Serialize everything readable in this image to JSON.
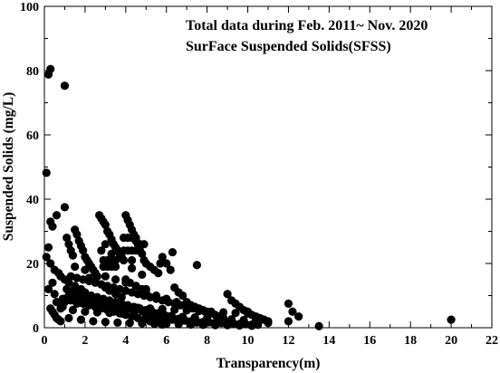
{
  "chart_data": {
    "type": "scatter",
    "annotations": [
      "Total data during Feb. 2011~ Nov. 2020",
      "SurFace Suspended Solids(SFSS)"
    ],
    "xlabel": "Transparency(m)",
    "ylabel": "Suspended Solids (mg/L)",
    "xlim": [
      0,
      22
    ],
    "ylim": [
      0,
      100
    ],
    "xticks": [
      "0",
      "2",
      "4",
      "6",
      "8",
      "10",
      "12",
      "14",
      "16",
      "18",
      "20",
      "22"
    ],
    "yticks": [
      "0",
      "20",
      "40",
      "60",
      "80",
      "100"
    ],
    "grid": false,
    "marker_color": "#000000",
    "series": [
      {
        "x": [
          0.2,
          0.3,
          1.0,
          0.1,
          1.0,
          0.6,
          0.3,
          0.4,
          0.2,
          0.1,
          0.3,
          0.5,
          0.7,
          0.8,
          0.4,
          0.2,
          0.5,
          0.9,
          0.6,
          0.3,
          0.4,
          0.5,
          0.6,
          0.7,
          0.8,
          0.9,
          1.1,
          1.2,
          1.3,
          1.4,
          1.5,
          1.6,
          1.7,
          1.8,
          1.9,
          2.0,
          2.1,
          2.2,
          2.3,
          2.4,
          2.5,
          2.6,
          2.7,
          2.8,
          2.9,
          3.0,
          3.1,
          3.2,
          3.3,
          3.4,
          3.5,
          3.6,
          3.7,
          3.8,
          3.9,
          4.0,
          4.1,
          4.2,
          4.3,
          4.4,
          4.5,
          4.6,
          4.7,
          4.8,
          4.9,
          5.0,
          5.2,
          5.4,
          5.6,
          5.8,
          6.0,
          6.2,
          6.4,
          6.6,
          6.8,
          7.0,
          7.2,
          7.4,
          7.6,
          7.8,
          8.0,
          8.2,
          8.4,
          8.6,
          8.8,
          9.0,
          9.2,
          9.4,
          9.6,
          9.8,
          10.0,
          10.2,
          10.4,
          10.6,
          10.8,
          11.0,
          12.0,
          12.2,
          12.5,
          13.5,
          20.0,
          1.0,
          1.2,
          1.5,
          1.8,
          2.0,
          2.2,
          2.5,
          2.8,
          3.0,
          3.2,
          3.5,
          3.8,
          4.0,
          4.2,
          4.5,
          4.8,
          5.0,
          5.5,
          6.0,
          6.5,
          1.0,
          1.3,
          1.6,
          1.9,
          2.2,
          2.5,
          2.8,
          3.1,
          3.4,
          3.7,
          4.0,
          4.3,
          4.6,
          4.9,
          5.2,
          5.5,
          5.8,
          1.1,
          1.4,
          1.7,
          2.0,
          2.3,
          2.6,
          2.9,
          3.2,
          3.5,
          3.8,
          4.1,
          4.4,
          4.7,
          5.0,
          5.3,
          5.6,
          5.9,
          6.2,
          1.5,
          2.0,
          2.5,
          3.0,
          3.5,
          4.0,
          4.5,
          5.0,
          2.8,
          3.3,
          3.8,
          4.3,
          1.2,
          1.8,
          2.4,
          3.0,
          3.6,
          4.2,
          4.8,
          5.4,
          6.0,
          6.6,
          7.2,
          7.8,
          8.4,
          9.0,
          9.6,
          10.2,
          0.8,
          1.4,
          2.0,
          2.6,
          3.2,
          3.8,
          4.4,
          5.0,
          5.6,
          6.2,
          6.8,
          7.4,
          8.0,
          8.6,
          9.2,
          9.8,
          10.4,
          11.0,
          12.0,
          1.0,
          1.6,
          2.2,
          2.8,
          3.4,
          4.0,
          4.6,
          5.2,
          5.8,
          6.4,
          7.0,
          7.6,
          8.2,
          8.8,
          9.4,
          10.0,
          1.2,
          1.5,
          1.8,
          2.1,
          2.4,
          2.7,
          3.0,
          3.3,
          3.6,
          3.9,
          4.2,
          4.5,
          4.8,
          5.1,
          5.4,
          5.7,
          6.0,
          6.3,
          6.6,
          6.9,
          7.2,
          7.5,
          1.3,
          1.6,
          1.9,
          2.2,
          2.5,
          2.8,
          3.1,
          3.4,
          3.7,
          4.0,
          4.3,
          4.6,
          4.9,
          5.2,
          5.5,
          5.8,
          6.1,
          6.4,
          6.7,
          7.0,
          7.3,
          7.6,
          7.9,
          2.9,
          3.1,
          3.3,
          3.5,
          2.9,
          3.1,
          3.3,
          3.5,
          3.9,
          4.1,
          4.3,
          4.5,
          4.7,
          4.9,
          3.9,
          4.1,
          4.3,
          4.5,
          5.0,
          5.3,
          5.6,
          5.9,
          6.1,
          6.3,
          6.6,
          6.9,
          7.2,
          7.5,
          7.8,
          8.1,
          8.4,
          8.7,
          9.0,
          9.3,
          9.6,
          9.9,
          10.2,
          10.5,
          3.0,
          3.6,
          4.3,
          4.8,
          5.7,
          6.3,
          7.5
        ],
        "y": [
          78.8,
          80.5,
          75.3,
          48.2,
          37.5,
          35.0,
          33.0,
          31.5,
          25.0,
          22.0,
          20.0,
          18.0,
          17.0,
          16.0,
          14.0,
          12.0,
          10.5,
          9.0,
          8.0,
          6.0,
          5.0,
          4.0,
          3.0,
          2.5,
          2.0,
          6.5,
          28.0,
          26.0,
          24.0,
          22.5,
          30.5,
          29.0,
          27.0,
          25.5,
          24.0,
          22.0,
          21.0,
          20.0,
          19.0,
          18.0,
          17.0,
          16.0,
          35.0,
          34.0,
          33.0,
          32.0,
          30.0,
          29.0,
          27.5,
          26.0,
          25.0,
          24.0,
          23.0,
          22.0,
          21.0,
          35.0,
          33.5,
          32.0,
          30.5,
          29.0,
          27.0,
          26.0,
          24.0,
          23.0,
          21.0,
          20.0,
          19.0,
          18.0,
          17.0,
          22.0,
          20.0,
          18.0,
          12.5,
          11.0,
          10.0,
          8.0,
          7.0,
          6.5,
          6.0,
          5.5,
          5.0,
          4.5,
          4.0,
          3.5,
          3.0,
          10.5,
          8.5,
          7.5,
          6.5,
          5.5,
          5.0,
          4.0,
          3.5,
          3.0,
          2.5,
          1.5,
          7.5,
          5.0,
          3.5,
          0.5,
          2.5,
          15.0,
          14.0,
          13.0,
          12.0,
          11.0,
          15.5,
          14.5,
          13.5,
          12.5,
          11.5,
          10.5,
          9.5,
          15.0,
          14.0,
          13.0,
          12.0,
          11.0,
          10.0,
          9.0,
          8.0,
          9.0,
          8.5,
          8.0,
          7.5,
          7.0,
          6.5,
          6.0,
          5.5,
          5.0,
          4.5,
          4.0,
          3.5,
          3.0,
          2.5,
          2.0,
          1.5,
          1.0,
          12.0,
          11.5,
          11.0,
          10.5,
          10.0,
          9.5,
          9.0,
          8.5,
          8.0,
          7.5,
          7.0,
          6.5,
          6.0,
          5.5,
          5.0,
          4.5,
          4.0,
          3.5,
          19.0,
          18.0,
          17.0,
          16.0,
          15.0,
          14.0,
          13.0,
          12.0,
          24.0,
          23.0,
          22.0,
          21.0,
          3.0,
          2.5,
          2.0,
          1.8,
          1.6,
          1.5,
          1.4,
          1.3,
          1.2,
          1.1,
          1.0,
          0.9,
          0.8,
          0.8,
          0.7,
          0.6,
          6.0,
          5.5,
          5.0,
          4.8,
          4.6,
          4.4,
          4.2,
          4.0,
          3.8,
          3.6,
          3.4,
          3.2,
          3.0,
          2.8,
          2.6,
          2.4,
          2.2,
          2.0,
          2.0,
          8.0,
          7.5,
          7.0,
          6.8,
          6.6,
          6.4,
          6.2,
          6.0,
          5.8,
          5.6,
          5.4,
          5.2,
          5.0,
          4.8,
          4.6,
          4.4,
          10.0,
          9.6,
          9.2,
          8.8,
          8.4,
          8.0,
          7.6,
          7.2,
          6.8,
          6.4,
          6.0,
          5.6,
          5.2,
          4.8,
          4.4,
          4.0,
          3.6,
          3.2,
          2.8,
          2.4,
          2.0,
          1.6,
          16.0,
          15.5,
          15.0,
          14.5,
          14.0,
          13.5,
          13.0,
          12.5,
          12.0,
          11.5,
          11.0,
          10.5,
          10.0,
          9.5,
          9.0,
          8.5,
          8.0,
          7.5,
          7.0,
          6.5,
          6.0,
          5.5,
          5.0,
          21.0,
          21.0,
          21.0,
          21.0,
          19.0,
          19.0,
          19.0,
          19.0,
          28.0,
          28.0,
          28.0,
          28.0,
          26.0,
          26.0,
          24.0,
          24.0,
          24.0,
          24.0,
          3.5,
          3.2,
          3.0,
          2.8,
          2.6,
          2.5,
          2.3,
          2.2,
          2.0,
          1.9,
          1.8,
          1.7,
          1.6,
          1.5,
          1.4,
          1.3,
          1.2,
          1.1,
          1.0,
          0.9,
          26.0,
          24.0,
          18.5,
          16.5,
          20.0,
          23.5,
          19.5
        ]
      }
    ]
  }
}
